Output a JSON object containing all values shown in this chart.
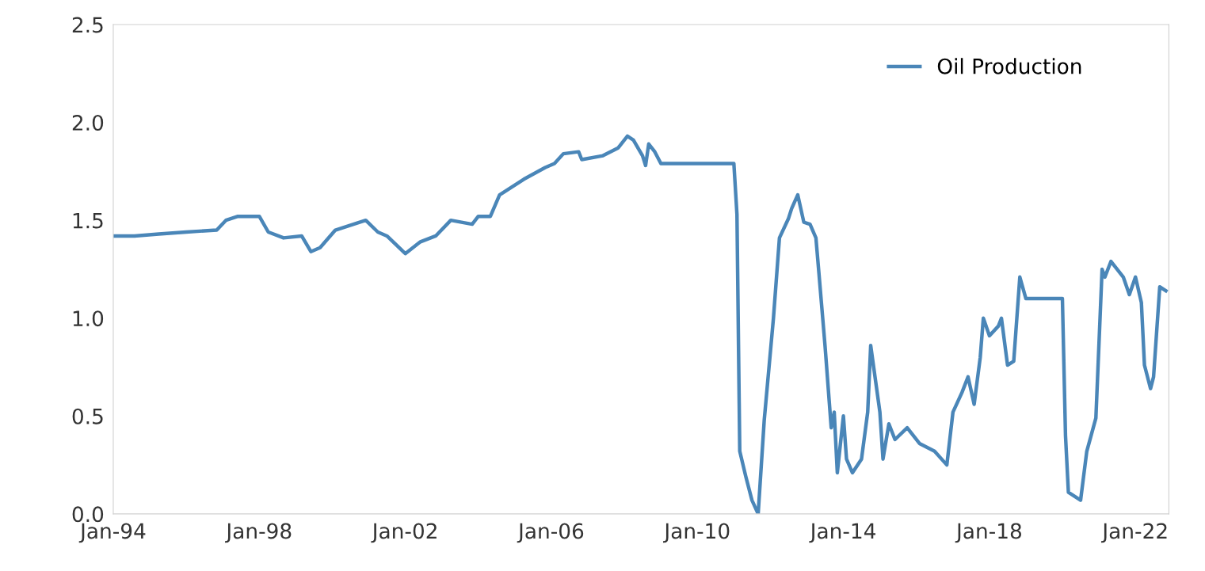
{
  "chart_data": {
    "type": "line",
    "x": [
      "1994-01",
      "1994-08",
      "1995-04",
      "1996-01",
      "1996-11",
      "1997-02",
      "1997-06",
      "1998-01",
      "1998-04",
      "1998-09",
      "1999-03",
      "1999-06",
      "1999-09",
      "2000-02",
      "2000-08",
      "2000-12",
      "2001-04",
      "2001-07",
      "2002-01",
      "2002-06",
      "2002-11",
      "2003-04",
      "2003-11",
      "2004-01",
      "2004-05",
      "2004-08",
      "2005-04",
      "2005-11",
      "2006-02",
      "2006-05",
      "2006-10",
      "2006-11",
      "2007-06",
      "2007-11",
      "2008-02",
      "2008-04",
      "2008-07",
      "2008-08",
      "2008-09",
      "2008-11",
      "2009-01",
      "2011-01",
      "2011-02",
      "2011-03",
      "2011-05",
      "2011-07",
      "2011-09",
      "2011-11",
      "2012-02",
      "2012-04",
      "2012-07",
      "2012-08",
      "2012-10",
      "2012-12",
      "2013-02",
      "2013-04",
      "2013-05",
      "2013-07",
      "2013-09",
      "2013-10",
      "2013-11",
      "2014-01",
      "2014-02",
      "2014-04",
      "2014-07",
      "2014-09",
      "2014-10",
      "2015-01",
      "2015-02",
      "2015-04",
      "2015-06",
      "2015-10",
      "2016-02",
      "2016-07",
      "2016-11",
      "2017-01",
      "2017-04",
      "2017-06",
      "2017-08",
      "2017-10",
      "2017-11",
      "2018-01",
      "2018-04",
      "2018-05",
      "2018-07",
      "2018-09",
      "2018-11",
      "2019-01",
      "2020-01",
      "2020-02",
      "2020-03",
      "2020-07",
      "2020-09",
      "2020-12",
      "2021-02",
      "2021-03",
      "2021-05",
      "2021-09",
      "2021-11",
      "2022-01",
      "2022-03",
      "2022-04",
      "2022-06",
      "2022-07",
      "2022-09",
      "2022-11"
    ],
    "series": [
      {
        "name": "Oil Production",
        "color": "#4a86b8",
        "values": [
          1.42,
          1.42,
          1.43,
          1.44,
          1.45,
          1.5,
          1.52,
          1.52,
          1.44,
          1.41,
          1.42,
          1.34,
          1.36,
          1.45,
          1.48,
          1.5,
          1.44,
          1.42,
          1.33,
          1.39,
          1.42,
          1.5,
          1.48,
          1.52,
          1.52,
          1.63,
          1.71,
          1.77,
          1.79,
          1.84,
          1.85,
          1.81,
          1.83,
          1.87,
          1.93,
          1.91,
          1.83,
          1.78,
          1.89,
          1.85,
          1.79,
          1.79,
          1.53,
          0.32,
          0.19,
          0.07,
          0.0,
          0.48,
          1.0,
          1.41,
          1.51,
          1.56,
          1.63,
          1.49,
          1.48,
          1.41,
          1.23,
          0.86,
          0.44,
          0.52,
          0.21,
          0.5,
          0.28,
          0.21,
          0.28,
          0.52,
          0.86,
          0.52,
          0.28,
          0.46,
          0.38,
          0.44,
          0.36,
          0.32,
          0.25,
          0.52,
          0.62,
          0.7,
          0.56,
          0.8,
          1.0,
          0.91,
          0.96,
          1.0,
          0.76,
          0.78,
          1.21,
          1.1,
          1.1,
          0.4,
          0.11,
          0.07,
          0.32,
          0.49,
          1.25,
          1.21,
          1.29,
          1.21,
          1.12,
          1.21,
          1.08,
          0.76,
          0.64,
          0.7,
          1.16,
          1.14
        ]
      }
    ],
    "xlim": [
      "1994-01",
      "2022-12"
    ],
    "xticks": [
      {
        "value": "1994-01",
        "label": "Jan-94"
      },
      {
        "value": "1998-01",
        "label": "Jan-98"
      },
      {
        "value": "2002-01",
        "label": "Jan-02"
      },
      {
        "value": "2006-01",
        "label": "Jan-06"
      },
      {
        "value": "2010-01",
        "label": "Jan-10"
      },
      {
        "value": "2014-01",
        "label": "Jan-14"
      },
      {
        "value": "2018-01",
        "label": "Jan-18"
      },
      {
        "value": "2022-01",
        "label": "Jan-22"
      }
    ],
    "ylim": [
      0,
      2.5
    ],
    "yticks": [
      {
        "value": 0,
        "label": "0.0"
      },
      {
        "value": 0.5,
        "label": "0.5"
      },
      {
        "value": 1,
        "label": "1.0"
      },
      {
        "value": 1.5,
        "label": "1.5"
      },
      {
        "value": 2,
        "label": "2.0"
      },
      {
        "value": 2.5,
        "label": "2.5"
      }
    ],
    "legend": "top right",
    "grid": false
  }
}
